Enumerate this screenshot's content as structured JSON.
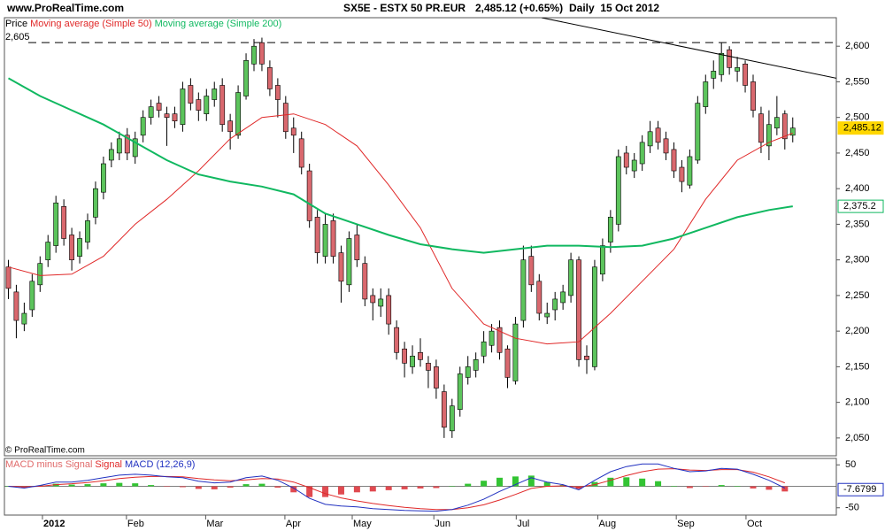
{
  "header": {
    "site": "www.ProRealTime.com",
    "copyright": "© ProRealTime.com"
  },
  "chart_data": [
    {
      "type": "candlestick",
      "title": "SX5E - ESTX 50 PR.EUR",
      "last_quote": "2,485.12 (+0.65%)",
      "period": "Daily  15 Oct 2012",
      "legend_title": "Price",
      "up_color": "#5cc45c",
      "down_color": "#d9686e",
      "open": [
        2290,
        2255,
        2210,
        2230,
        2265,
        2300,
        2320,
        2375,
        2335,
        2305,
        2325,
        2360,
        2395,
        2440,
        2450,
        2475,
        2445,
        2475,
        2500,
        2520,
        2505,
        2505,
        2490,
        2545,
        2525,
        2505,
        2525,
        2545,
        2495,
        2475,
        2530,
        2575,
        2605,
        2570,
        2545,
        2520,
        2485,
        2470,
        2425,
        2360,
        2305,
        2355,
        2310,
        2265,
        2335,
        2295,
        2250,
        2235,
        2250,
        2205,
        2175,
        2150,
        2170,
        2155,
        2150,
        2115,
        2060,
        2090,
        2135,
        2145,
        2165,
        2180,
        2205,
        2175,
        2130,
        2215,
        2305,
        2270,
        2220,
        2230,
        2240,
        2250,
        2300,
        2165,
        2150,
        2280,
        2325,
        2350,
        2450,
        2425,
        2435,
        2460,
        2485,
        2470,
        2455,
        2430,
        2405,
        2440,
        2515,
        2555,
        2560,
        2595,
        2565,
        2575,
        2550,
        2505,
        2460,
        2485,
        2505,
        2475
      ],
      "high": [
        2300,
        2265,
        2240,
        2280,
        2305,
        2335,
        2390,
        2385,
        2345,
        2340,
        2365,
        2410,
        2445,
        2465,
        2480,
        2485,
        2480,
        2510,
        2525,
        2530,
        2515,
        2515,
        2550,
        2555,
        2535,
        2540,
        2550,
        2555,
        2505,
        2545,
        2590,
        2610,
        2612,
        2580,
        2555,
        2530,
        2500,
        2480,
        2435,
        2370,
        2365,
        2365,
        2320,
        2340,
        2350,
        2305,
        2260,
        2260,
        2260,
        2215,
        2185,
        2180,
        2190,
        2165,
        2160,
        2125,
        2105,
        2150,
        2165,
        2170,
        2200,
        2210,
        2215,
        2180,
        2220,
        2320,
        2320,
        2280,
        2240,
        2255,
        2265,
        2310,
        2305,
        2180,
        2300,
        2330,
        2370,
        2455,
        2460,
        2450,
        2475,
        2495,
        2495,
        2480,
        2465,
        2440,
        2455,
        2530,
        2560,
        2580,
        2605,
        2600,
        2585,
        2580,
        2560,
        2515,
        2510,
        2530,
        2510,
        2500
      ],
      "low": [
        2245,
        2190,
        2200,
        2220,
        2255,
        2290,
        2310,
        2320,
        2285,
        2295,
        2315,
        2350,
        2385,
        2430,
        2440,
        2440,
        2435,
        2465,
        2490,
        2500,
        2460,
        2485,
        2480,
        2510,
        2495,
        2495,
        2515,
        2480,
        2455,
        2470,
        2525,
        2565,
        2565,
        2530,
        2500,
        2470,
        2450,
        2420,
        2345,
        2295,
        2295,
        2295,
        2240,
        2255,
        2290,
        2235,
        2215,
        2220,
        2195,
        2160,
        2135,
        2140,
        2150,
        2120,
        2105,
        2050,
        2050,
        2080,
        2125,
        2135,
        2155,
        2170,
        2160,
        2120,
        2125,
        2205,
        2255,
        2215,
        2210,
        2215,
        2230,
        2240,
        2150,
        2140,
        2145,
        2270,
        2310,
        2340,
        2420,
        2415,
        2425,
        2450,
        2455,
        2440,
        2415,
        2395,
        2400,
        2435,
        2505,
        2540,
        2550,
        2560,
        2550,
        2535,
        2500,
        2450,
        2440,
        2475,
        2455,
        2465
      ],
      "close": [
        2260,
        2215,
        2225,
        2270,
        2295,
        2325,
        2380,
        2330,
        2300,
        2330,
        2355,
        2400,
        2435,
        2455,
        2470,
        2450,
        2470,
        2500,
        2515,
        2510,
        2500,
        2495,
        2540,
        2520,
        2510,
        2530,
        2540,
        2490,
        2480,
        2535,
        2580,
        2600,
        2575,
        2540,
        2525,
        2480,
        2475,
        2430,
        2355,
        2310,
        2350,
        2305,
        2270,
        2330,
        2300,
        2245,
        2240,
        2245,
        2210,
        2170,
        2155,
        2165,
        2160,
        2145,
        2120,
        2065,
        2095,
        2140,
        2150,
        2160,
        2185,
        2200,
        2170,
        2135,
        2210,
        2300,
        2265,
        2225,
        2225,
        2245,
        2255,
        2300,
        2160,
        2160,
        2290,
        2320,
        2360,
        2445,
        2430,
        2440,
        2465,
        2480,
        2465,
        2450,
        2425,
        2410,
        2445,
        2520,
        2550,
        2565,
        2590,
        2570,
        2570,
        2545,
        2510,
        2465,
        2490,
        2500,
        2470,
        2485.12
      ],
      "series": [
        {
          "name": "Moving average (Simple 50)",
          "color": "#e02828",
          "width": 1,
          "x": [
            0,
            4,
            8,
            12,
            16,
            20,
            24,
            28,
            32,
            36,
            40,
            44,
            48,
            52,
            56,
            60,
            64,
            68,
            72,
            76,
            80,
            84,
            88,
            92,
            96,
            99
          ],
          "values": [
            2290,
            2278,
            2280,
            2305,
            2350,
            2385,
            2425,
            2470,
            2500,
            2505,
            2490,
            2460,
            2405,
            2345,
            2260,
            2210,
            2190,
            2182,
            2185,
            2225,
            2270,
            2315,
            2385,
            2440,
            2465,
            2478
          ]
        },
        {
          "name": "Moving average (Simple 200)",
          "color": "#10b860",
          "width": 2,
          "x": [
            0,
            4,
            8,
            12,
            16,
            20,
            24,
            28,
            32,
            36,
            40,
            44,
            48,
            52,
            56,
            60,
            64,
            68,
            72,
            76,
            80,
            84,
            88,
            92,
            96,
            99
          ],
          "values": [
            2555,
            2530,
            2510,
            2490,
            2465,
            2440,
            2420,
            2410,
            2403,
            2392,
            2365,
            2350,
            2335,
            2322,
            2315,
            2310,
            2315,
            2320,
            2320,
            2318,
            2320,
            2330,
            2345,
            2360,
            2370,
            2375.2
          ]
        }
      ],
      "trendline": {
        "color": "#000000",
        "x": [
          67.3,
          104.5
        ],
        "values": [
          2640,
          2555
        ]
      },
      "reference_line": {
        "value": 2605,
        "label": "2,605"
      },
      "value_tags": [
        {
          "value": 2485.12,
          "label": "2,485.12",
          "color": "#ffd700"
        },
        {
          "value": 2375.2,
          "label": "2,375.2",
          "color": "#10b860"
        }
      ],
      "xlim": [
        -0.5,
        104.5
      ],
      "xticks": [
        {
          "value": 4.3,
          "label": "2012"
        },
        {
          "value": 14.9,
          "label": "Feb"
        },
        {
          "value": 24.9,
          "label": "Mar"
        },
        {
          "value": 34.9,
          "label": "Apr"
        },
        {
          "value": 43.4,
          "label": "May"
        },
        {
          "value": 53.7,
          "label": "Jun"
        },
        {
          "value": 64.1,
          "label": "Jul"
        },
        {
          "value": 74.4,
          "label": "Aug"
        },
        {
          "value": 84.3,
          "label": "Sep"
        },
        {
          "value": 93.1,
          "label": "Oct"
        }
      ],
      "ylim": [
        2025,
        2640
      ],
      "yticks": [
        {
          "value": 2050,
          "label": "2,050"
        },
        {
          "value": 2100,
          "label": "2,100"
        },
        {
          "value": 2150,
          "label": "2,150"
        },
        {
          "value": 2200,
          "label": "2,200"
        },
        {
          "value": 2250,
          "label": "2,250"
        },
        {
          "value": 2300,
          "label": "2,300"
        },
        {
          "value": 2350,
          "label": "2,350"
        },
        {
          "value": 2400,
          "label": "2,400"
        },
        {
          "value": 2450,
          "label": "2,450"
        },
        {
          "value": 2500,
          "label": "2,500"
        },
        {
          "value": 2550,
          "label": "2,550"
        },
        {
          "value": 2600,
          "label": "2,600"
        }
      ]
    },
    {
      "type": "macd",
      "x": [
        0,
        2,
        4,
        6,
        8,
        10,
        12,
        14,
        16,
        18,
        20,
        22,
        24,
        26,
        28,
        30,
        32,
        34,
        36,
        38,
        40,
        42,
        44,
        46,
        48,
        50,
        52,
        54,
        56,
        58,
        60,
        62,
        64,
        66,
        68,
        70,
        72,
        74,
        76,
        78,
        80,
        82,
        84,
        86,
        88,
        90,
        92,
        94,
        96,
        98
      ],
      "series": [
        {
          "name": "MACD minus Signal",
          "type": "bar",
          "color": "#e06a6a",
          "up_color": "#33c433",
          "down_color": "#e04a50",
          "values": [
            0,
            -3,
            2,
            6,
            4,
            5,
            7,
            8,
            7,
            3,
            -1,
            -2,
            -6,
            -7,
            -3,
            5,
            6,
            -3,
            -14,
            -25,
            -25,
            -19,
            -14,
            -12,
            -9,
            -7,
            -5,
            -4,
            0,
            6,
            13,
            20,
            23,
            25,
            10,
            3,
            -6,
            10,
            20,
            21,
            18,
            12,
            1,
            -4,
            -1,
            3,
            1,
            -5,
            -8,
            -12
          ]
        },
        {
          "name": "Signal",
          "type": "line",
          "color": "#e02828",
          "values": [
            0,
            -1,
            0,
            4,
            6,
            9,
            13,
            18,
            21,
            23,
            23,
            22,
            18,
            15,
            13,
            15,
            18,
            17,
            10,
            -3,
            -17,
            -27,
            -34,
            -40,
            -45,
            -49,
            -52,
            -54,
            -54,
            -50,
            -43,
            -32,
            -19,
            -5,
            0,
            1,
            -2,
            4,
            14,
            25,
            34,
            40,
            41,
            38,
            37,
            39,
            39,
            33,
            22,
            8
          ]
        },
        {
          "name": "MACD (12,26,9)",
          "type": "line",
          "color": "#2030c0",
          "values": [
            0,
            -4,
            2,
            10,
            10,
            14,
            20,
            26,
            28,
            26,
            22,
            20,
            12,
            8,
            10,
            20,
            24,
            14,
            -4,
            -28,
            -42,
            -46,
            -48,
            -52,
            -54,
            -56,
            -57,
            -58,
            -54,
            -44,
            -30,
            -12,
            4,
            20,
            10,
            4,
            -8,
            14,
            34,
            46,
            52,
            52,
            42,
            34,
            36,
            42,
            40,
            28,
            14,
            -4
          ]
        }
      ],
      "value_tags": [
        {
          "value": -7.6799,
          "label": "-7.6799",
          "color": "#ffffff"
        }
      ],
      "ylim": [
        -67,
        65
      ],
      "yticks": [
        50,
        -50
      ]
    }
  ]
}
